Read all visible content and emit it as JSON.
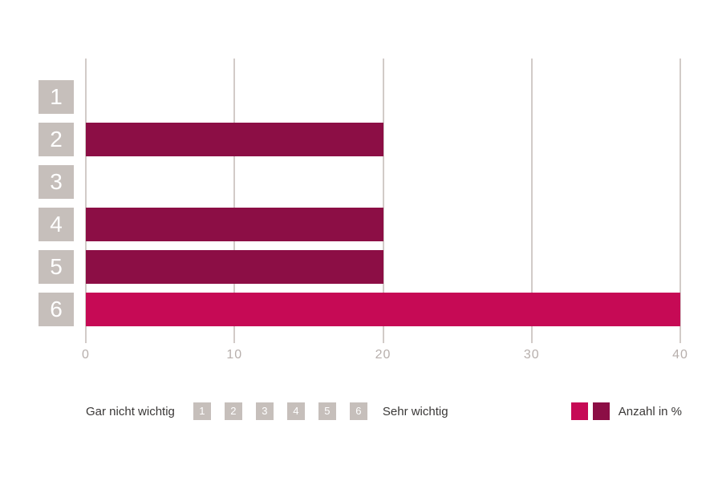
{
  "chart_data": {
    "type": "bar",
    "orientation": "horizontal",
    "title": "",
    "categories": [
      "1",
      "2",
      "3",
      "4",
      "5",
      "6"
    ],
    "values": [
      0,
      20,
      0,
      20,
      20,
      40
    ],
    "bar_colors": [
      "#8c0e45",
      "#8c0e45",
      "#8c0e45",
      "#8c0e45",
      "#8c0e45",
      "#c60a55"
    ],
    "x_ticks": [
      "0",
      "10",
      "20",
      "30",
      "40"
    ],
    "xlim": [
      0,
      40
    ],
    "grid": "vertical-gridlines-on",
    "legend_position": "bottom"
  },
  "legend": {
    "scale_min_label": "Gar nicht wichtig",
    "scale_max_label": "Sehr wichtig",
    "scale_steps": [
      "1",
      "2",
      "3",
      "4",
      "5",
      "6"
    ],
    "series": {
      "label": "Anzahl in %",
      "colors": [
        "#c60a55",
        "#8c0e45"
      ]
    }
  },
  "colors": {
    "background": "#ffffff",
    "bar_primary": "#c60a55",
    "bar_secondary": "#8c0e45",
    "category_square": "#c6bfbb",
    "gridline": "#d2cbc8",
    "tick_text": "#b7afac",
    "legend_text": "#3a3837"
  }
}
